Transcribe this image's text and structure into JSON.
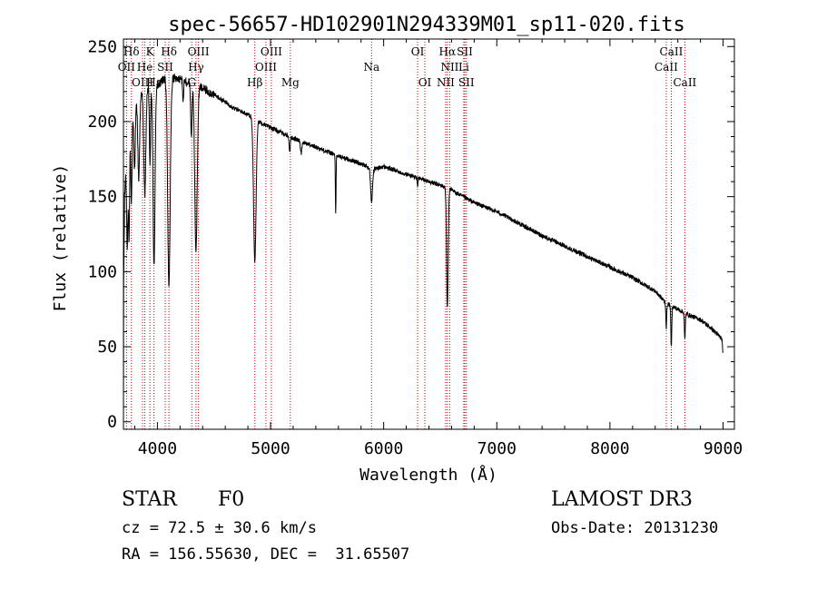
{
  "chart_data": {
    "type": "line",
    "title": "spec-56657-HD102901N294339M01_sp11-020.fits",
    "xlabel": "Wavelength (Å)",
    "ylabel": "Flux (relative)",
    "xlim": [
      3700,
      9100
    ],
    "ylim": [
      -5,
      255
    ],
    "xticks": [
      4000,
      5000,
      6000,
      7000,
      8000,
      9000
    ],
    "yticks": [
      0,
      50,
      100,
      150,
      200,
      250
    ],
    "xtick_labels": [
      "4000",
      "5000",
      "6000",
      "7000",
      "8000",
      "9000"
    ],
    "ytick_labels": [
      "0",
      "50",
      "100",
      "150",
      "200",
      "250"
    ],
    "series": [
      {
        "name": "flux",
        "continuum": [
          [
            3700,
            0
          ],
          [
            3702,
            90
          ],
          [
            3710,
            150
          ],
          [
            3730,
            185
          ],
          [
            3760,
            205
          ],
          [
            3800,
            215
          ],
          [
            3850,
            218
          ],
          [
            3900,
            222
          ],
          [
            4000,
            225
          ],
          [
            4100,
            230
          ],
          [
            4200,
            228
          ],
          [
            4300,
            226
          ],
          [
            4400,
            222
          ],
          [
            4500,
            218
          ],
          [
            4600,
            213
          ],
          [
            4700,
            208
          ],
          [
            4800,
            205
          ],
          [
            4900,
            200
          ],
          [
            5000,
            196
          ],
          [
            5200,
            189
          ],
          [
            5400,
            183
          ],
          [
            5600,
            177
          ],
          [
            5800,
            172
          ],
          [
            5900,
            168
          ],
          [
            6000,
            170
          ],
          [
            6200,
            165
          ],
          [
            6400,
            160
          ],
          [
            6562,
            156
          ],
          [
            6700,
            150
          ],
          [
            6800,
            146
          ],
          [
            7000,
            140
          ],
          [
            7200,
            132
          ],
          [
            7400,
            124
          ],
          [
            7600,
            117
          ],
          [
            7800,
            110
          ],
          [
            8000,
            103
          ],
          [
            8200,
            96
          ],
          [
            8400,
            87
          ],
          [
            8498,
            79
          ],
          [
            8600,
            75
          ],
          [
            8700,
            71
          ],
          [
            8800,
            68
          ],
          [
            8900,
            62
          ],
          [
            8990,
            55
          ],
          [
            8998,
            45
          ]
        ],
        "absorption": [
          [
            3734,
            72,
            6
          ],
          [
            3750,
            75,
            5
          ],
          [
            3770,
            60,
            6
          ],
          [
            3798,
            45,
            7
          ],
          [
            3835,
            55,
            8
          ],
          [
            3889,
            70,
            9
          ],
          [
            3934,
            50,
            5
          ],
          [
            3970,
            120,
            9
          ],
          [
            4102,
            140,
            11
          ],
          [
            4227,
            15,
            4
          ],
          [
            4300,
            35,
            6
          ],
          [
            4341,
            110,
            11
          ],
          [
            4861,
            95,
            11
          ],
          [
            5169,
            10,
            5
          ],
          [
            5270,
            8,
            6
          ],
          [
            5576,
            40,
            3
          ],
          [
            5893,
            22,
            8
          ],
          [
            6563,
            80,
            7
          ],
          [
            6300,
            6,
            3
          ],
          [
            8498,
            16,
            4
          ],
          [
            8542,
            28,
            4
          ],
          [
            8662,
            18,
            4
          ]
        ]
      }
    ],
    "lines": [
      {
        "label": "Hδ",
        "wavelength": 3770,
        "row": 0
      },
      {
        "label": "K",
        "wavelength": 3934,
        "row": 0
      },
      {
        "label": "Hδ",
        "wavelength": 4102,
        "row": 0
      },
      {
        "label": "OII",
        "wavelength": 3727,
        "row": 1
      },
      {
        "label": "He",
        "wavelength": 3889,
        "row": 1
      },
      {
        "label": "SII",
        "wavelength": 4069,
        "row": 1
      },
      {
        "label": "OIII",
        "wavelength": 3869,
        "row": 2
      },
      {
        "label": "Hε",
        "wavelength": 3970,
        "row": 2
      },
      {
        "label": "OIII",
        "wavelength": 4363,
        "row": 0
      },
      {
        "label": "Hγ",
        "wavelength": 4341,
        "row": 1
      },
      {
        "label": "G",
        "wavelength": 4304,
        "row": 2
      },
      {
        "label": "OIII",
        "wavelength": 5007,
        "row": 0
      },
      {
        "label": "OIII",
        "wavelength": 4959,
        "row": 1
      },
      {
        "label": "Hβ",
        "wavelength": 4861,
        "row": 2
      },
      {
        "label": "Mg",
        "wavelength": 5175,
        "row": 2
      },
      {
        "label": "Na",
        "wavelength": 5893,
        "row": 1
      },
      {
        "label": "OI",
        "wavelength": 6300,
        "row": 0
      },
      {
        "label": "OI",
        "wavelength": 6364,
        "row": 2
      },
      {
        "label": "Hα",
        "wavelength": 6563,
        "row": 0
      },
      {
        "label": "SII",
        "wavelength": 6717,
        "row": 0
      },
      {
        "label": "NII",
        "wavelength": 6584,
        "row": 1
      },
      {
        "label": "Li",
        "wavelength": 6708,
        "row": 1
      },
      {
        "label": "NII",
        "wavelength": 6548,
        "row": 2
      },
      {
        "label": "SII",
        "wavelength": 6731,
        "row": 2
      },
      {
        "label": "CaII",
        "wavelength": 8542,
        "row": 0
      },
      {
        "label": "CaII",
        "wavelength": 8498,
        "row": 1
      },
      {
        "label": "CaII",
        "wavelength": 8662,
        "row": 2
      }
    ]
  },
  "info": {
    "object_type": "STAR",
    "subclass": "F0",
    "survey": "LAMOST DR3",
    "cz": "cz = 72.5 ± 30.6 km/s",
    "obs_date": "Obs-Date: 20131230",
    "coords": "RA = 156.55630, DEC =  31.65507"
  },
  "colors": {
    "line_marker": "#cc0000",
    "spectrum": "#000000",
    "axes": "#000000"
  }
}
